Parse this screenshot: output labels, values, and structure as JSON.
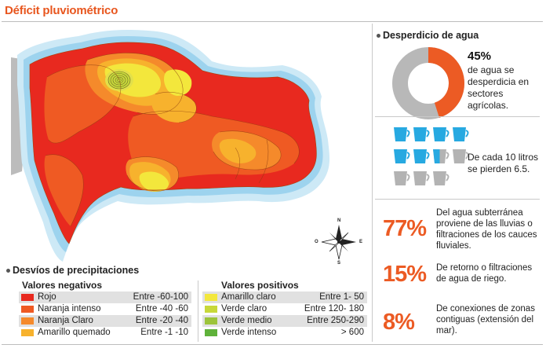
{
  "header": {
    "title": "Déficit pluviométrico"
  },
  "map": {
    "colors": {
      "rojo": "#e8291f",
      "naranja_intenso": "#ef5a23",
      "naranja_claro": "#f58a2b",
      "amarillo_quemado": "#f7b22d",
      "amarillo_claro": "#f3e73c",
      "verde_claro": "#c8d83a",
      "sea_light": "#cde9f6",
      "sea_mid": "#9dd3ee",
      "neighbor": "#bcbcbc"
    },
    "compass": {
      "n": "N",
      "s": "S",
      "e": "E",
      "o": "O"
    }
  },
  "desperdicio": {
    "heading": "Desperdicio de agua",
    "percent": "45%",
    "text": "de agua se desperdicia en sectores agrícolas.",
    "donut_fraction": 0.45,
    "donut_color": "#ec5b24",
    "donut_rest": "#b8b8b8",
    "liters_text": "De cada 10 litros se pierden 6.5.",
    "liters_lost": 6.5,
    "liters_total": 10,
    "cup_blue": "#27a9e1",
    "cup_grey": "#b3b3b3"
  },
  "stats": [
    {
      "value": "77%",
      "text": "Del agua subterránea proviene de las lluvias o filtraciones de los cauces fluviales."
    },
    {
      "value": "15%",
      "text": "De retorno o filtraciones de agua de riego."
    },
    {
      "value": "8%",
      "text": "De conexiones de zonas contiguas (extensión del mar)."
    }
  ],
  "legend": {
    "heading": "Desvíos de precipitaciones",
    "negative": {
      "title": "Valores negativos",
      "items": [
        {
          "name": "Rojo",
          "range": "Entre -60-100",
          "color": "#e8291f"
        },
        {
          "name": "Naranja intenso",
          "range": "Entre -40 -60",
          "color": "#ef5a23"
        },
        {
          "name": "Naranja Claro",
          "range": "Entre -20 -40",
          "color": "#f58a2b"
        },
        {
          "name": "Amarillo quemado",
          "range": "Entre  -1 -10",
          "color": "#f7b22d"
        }
      ]
    },
    "positive": {
      "title": "Valores positivos",
      "items": [
        {
          "name": "Amarillo claro",
          "range": "Entre 1- 50",
          "color": "#f3e73c"
        },
        {
          "name": "Verde claro",
          "range": "Entre 120- 180",
          "color": "#c8d83a"
        },
        {
          "name": "Verde medio",
          "range": "Entre 250-290",
          "color": "#9cc43a"
        },
        {
          "name": "Verde intenso",
          "range": "> 600",
          "color": "#5fb23a"
        }
      ]
    }
  }
}
